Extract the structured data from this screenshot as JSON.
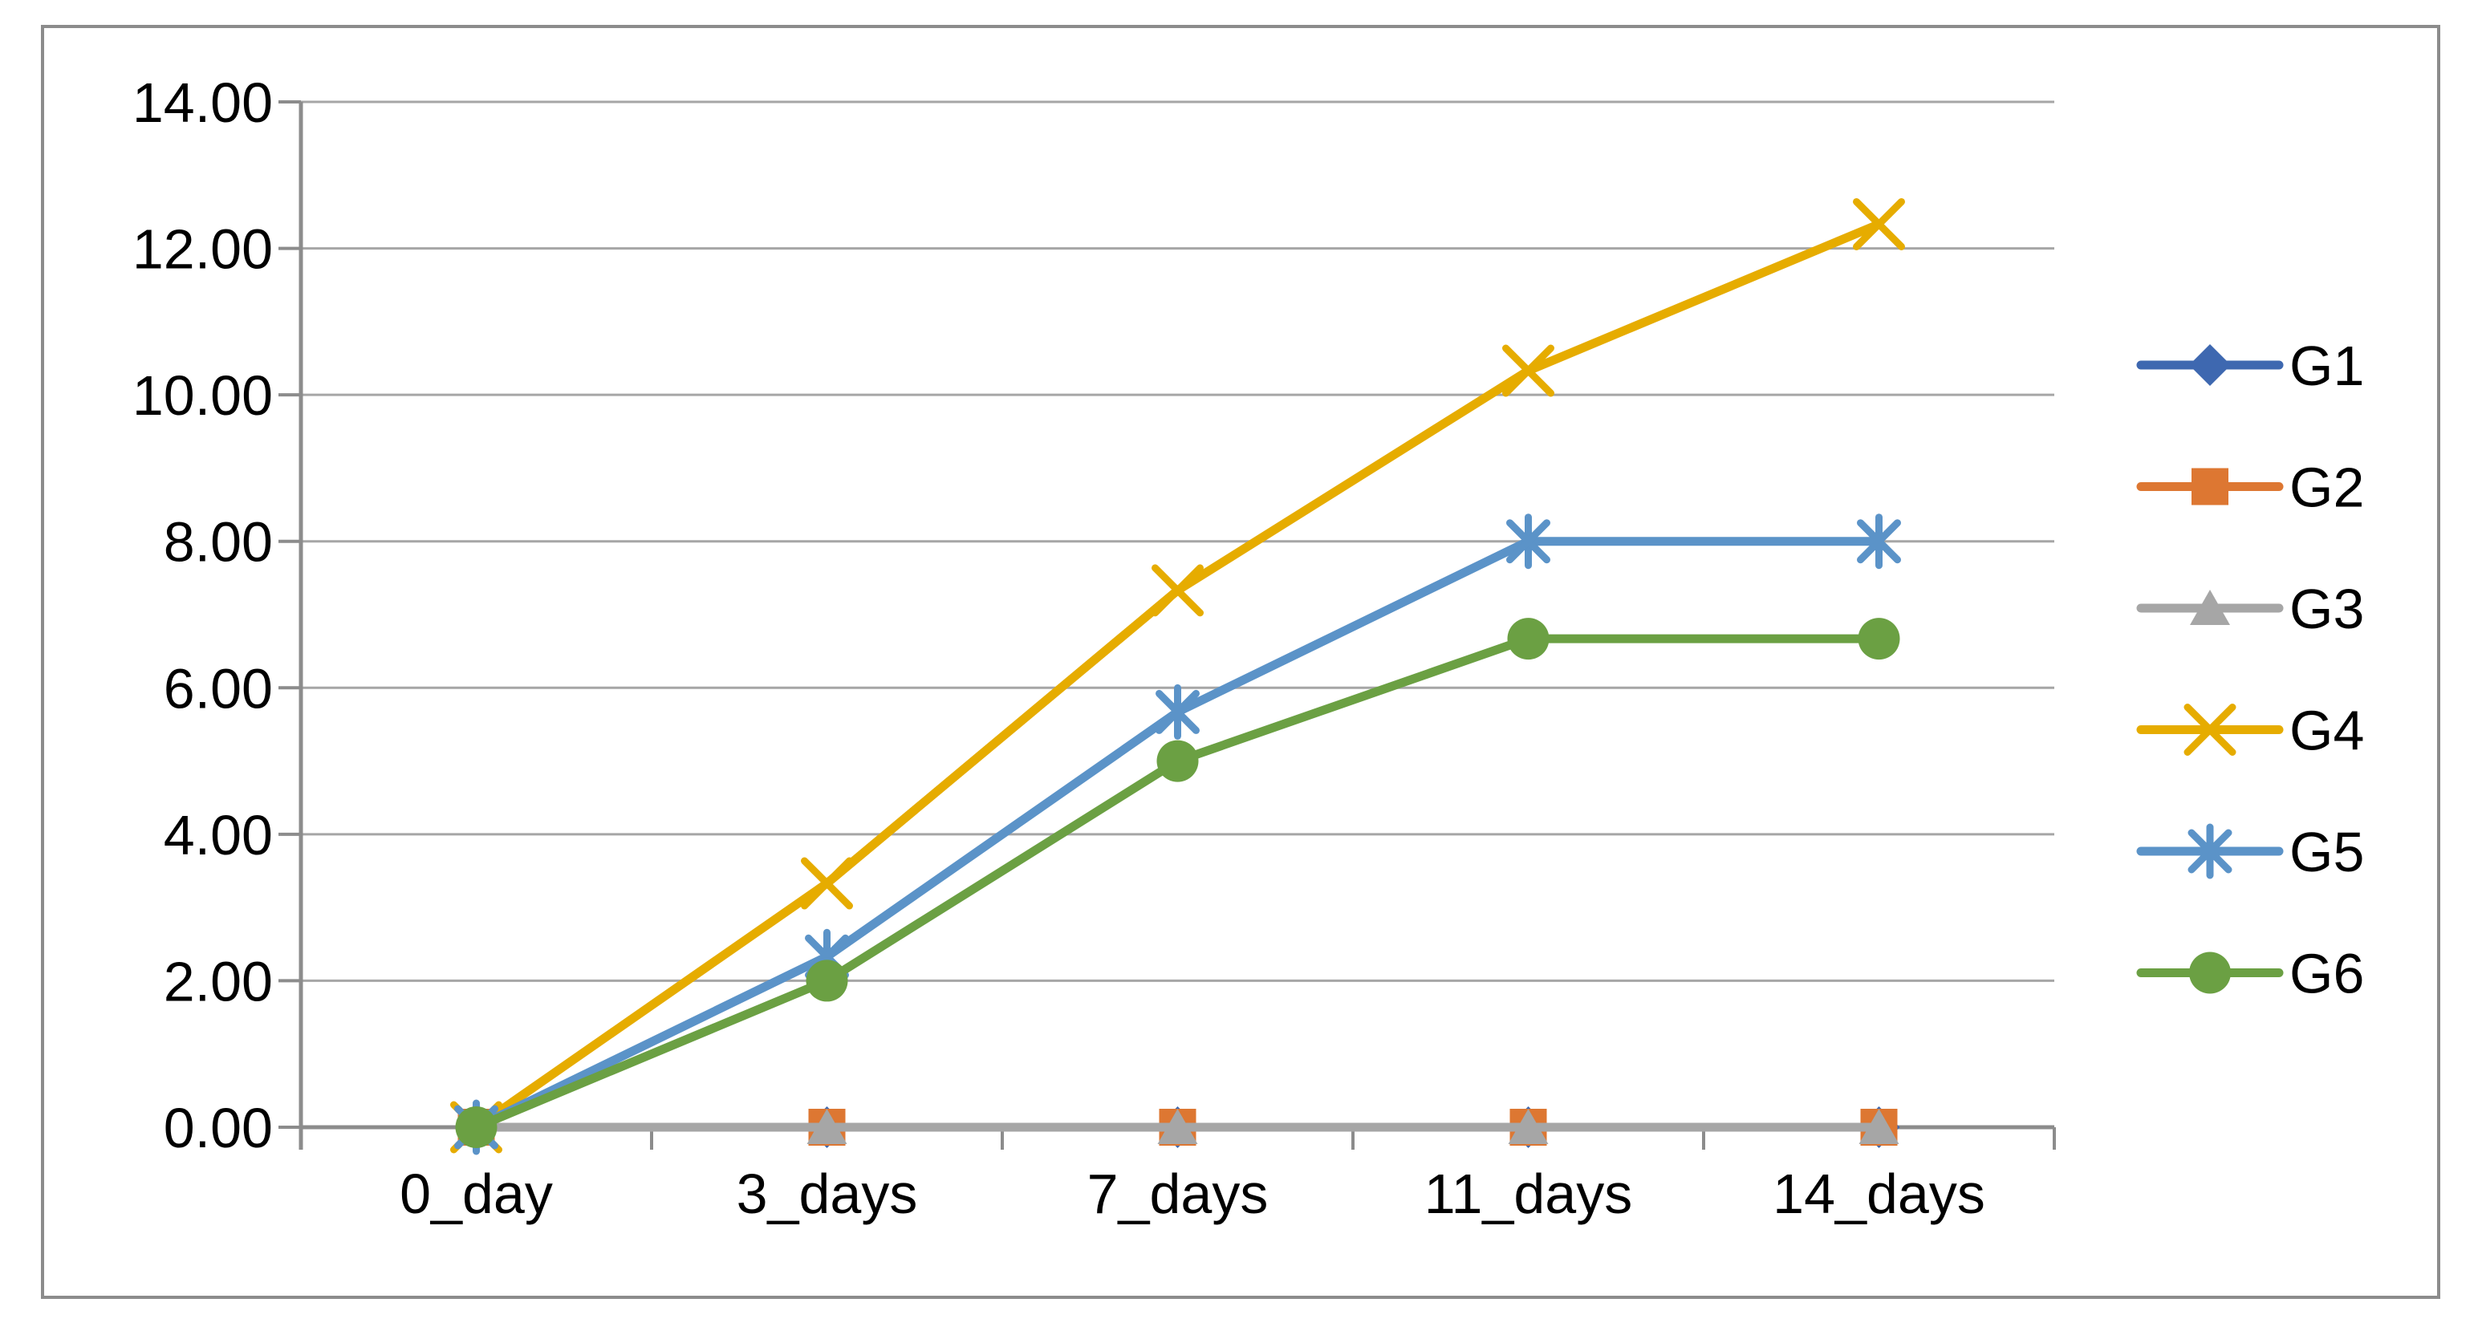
{
  "chart_data": {
    "type": "line",
    "title": "",
    "xlabel": "",
    "ylabel": "",
    "categories": [
      "0_day",
      "3_days",
      "7_days",
      "11_days",
      "14_days"
    ],
    "series": [
      {
        "name": "G1",
        "marker": "diamond",
        "color": "#3E68B0",
        "values": [
          0,
          0,
          0,
          0,
          0
        ]
      },
      {
        "name": "G2",
        "marker": "square",
        "color": "#DD7732",
        "values": [
          0,
          0,
          0,
          0,
          0
        ]
      },
      {
        "name": "G3",
        "marker": "triangle",
        "color": "#A6A6A6",
        "values": [
          0,
          0,
          0,
          0,
          0
        ]
      },
      {
        "name": "G4",
        "marker": "x",
        "color": "#E6AC00",
        "values": [
          0,
          3.33,
          7.33,
          10.33,
          12.33
        ]
      },
      {
        "name": "G5",
        "marker": "asterisk",
        "color": "#5B93C8",
        "values": [
          0,
          2.33,
          5.67,
          8.0,
          8.0
        ]
      },
      {
        "name": "G6",
        "marker": "circle",
        "color": "#6BA043",
        "values": [
          0,
          2.0,
          5.0,
          6.67,
          6.67
        ]
      }
    ],
    "y_axis": {
      "min": 0,
      "max": 14,
      "step": 2,
      "tick_labels": [
        "0.00",
        "2.00",
        "4.00",
        "6.00",
        "8.00",
        "10.00",
        "12.00",
        "14.00"
      ]
    },
    "grid": true,
    "legend_position": "right",
    "colors": {
      "axis": "#8C8C8C",
      "gridline": "#A6A6A6",
      "tick_text": "#000000",
      "chart_border": "#8C8C8C",
      "background": "#FFFFFF"
    }
  }
}
